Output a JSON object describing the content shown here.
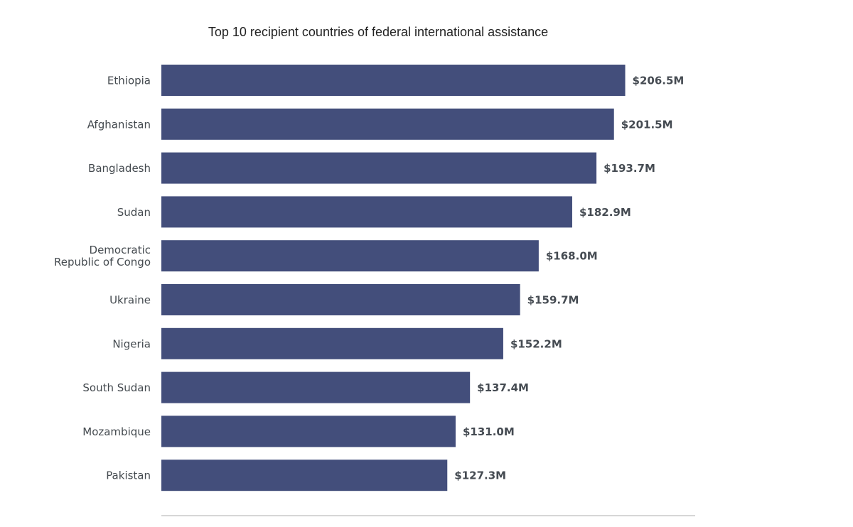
{
  "chart_data": {
    "type": "bar",
    "orientation": "horizontal",
    "title": "Top 10 recipient countries of federal international assistance",
    "xlabel": "",
    "ylabel": "",
    "unit": "$M",
    "categories": [
      "Ethiopia",
      "Afghanistan",
      "Bangladesh",
      "Sudan",
      "Democratic Republic of Congo",
      "Ukraine",
      "Nigeria",
      "South Sudan",
      "Mozambique",
      "Pakistan"
    ],
    "category_label_lines": [
      [
        "Ethiopia"
      ],
      [
        "Afghanistan"
      ],
      [
        "Bangladesh"
      ],
      [
        "Sudan"
      ],
      [
        "Democratic",
        "Republic of Congo"
      ],
      [
        "Ukraine"
      ],
      [
        "Nigeria"
      ],
      [
        "South Sudan"
      ],
      [
        "Mozambique"
      ],
      [
        "Pakistan"
      ]
    ],
    "values": [
      206.5,
      201.5,
      193.7,
      182.9,
      168.0,
      159.7,
      152.2,
      137.4,
      131.0,
      127.3
    ],
    "value_labels": [
      "$206.5M",
      "$201.5M",
      "$193.7M",
      "$182.9M",
      "$168.0M",
      "$159.7M",
      "$152.2M",
      "$137.4M",
      "$131.0M",
      "$127.3M"
    ],
    "xlim": [
      0,
      240
    ],
    "grid": false,
    "legend": "none",
    "bar_color": "#434e7b"
  }
}
